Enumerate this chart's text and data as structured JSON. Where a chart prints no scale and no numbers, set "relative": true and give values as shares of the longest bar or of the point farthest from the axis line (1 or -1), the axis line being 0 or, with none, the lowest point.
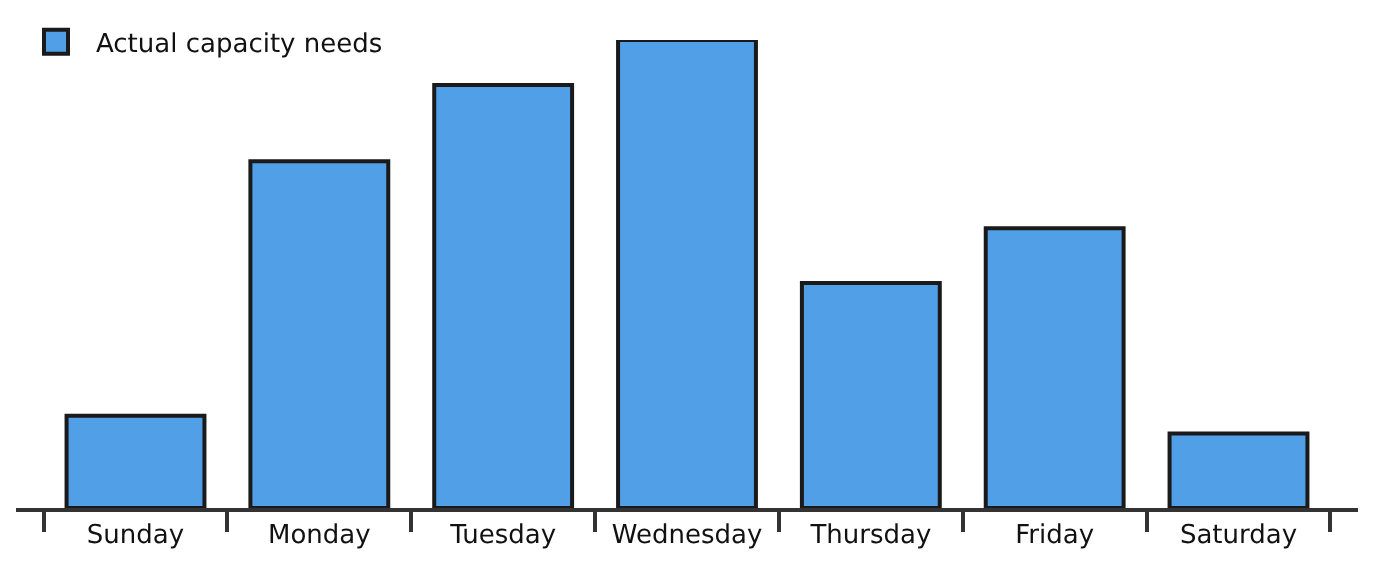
{
  "chart_data": {
    "type": "bar",
    "relative": true,
    "categories": [
      "Sunday",
      "Monday",
      "Tuesday",
      "Wednesday",
      "Thursday",
      "Friday",
      "Saturday"
    ],
    "series": [
      {
        "name": "Actual capacity needs",
        "color": "#519fe6",
        "values": [
          0.197,
          0.741,
          0.904,
          1,
          0.481,
          0.598,
          0.159
        ]
      }
    ],
    "legend": "top left"
  }
}
